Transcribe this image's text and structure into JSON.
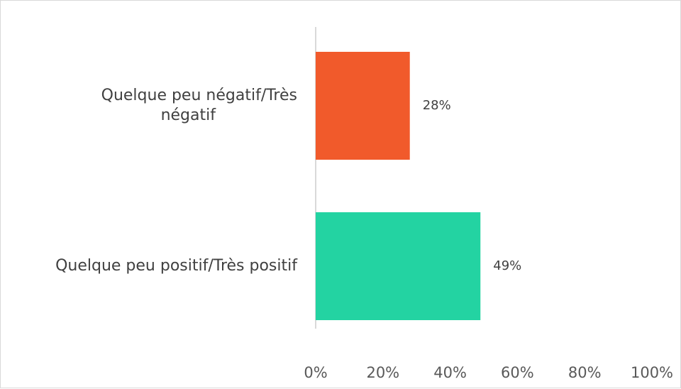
{
  "chart_data": {
    "type": "bar",
    "orientation": "horizontal",
    "categories": [
      [
        "Quelque peu négatif/Très",
        "négatif"
      ],
      [
        "Quelque peu positif/Très positif"
      ]
    ],
    "values": [
      28,
      49
    ],
    "data_labels": [
      "28%",
      "49%"
    ],
    "bar_colors": [
      "#F15A2B",
      "#23D3A2"
    ],
    "xlim": [
      0,
      100
    ],
    "x_ticks": [
      "0%",
      "20%",
      "40%",
      "60%",
      "80%",
      "100%"
    ],
    "grid": false,
    "axis_color": "#d9d9d9",
    "title": "",
    "xlabel": "",
    "ylabel": ""
  }
}
